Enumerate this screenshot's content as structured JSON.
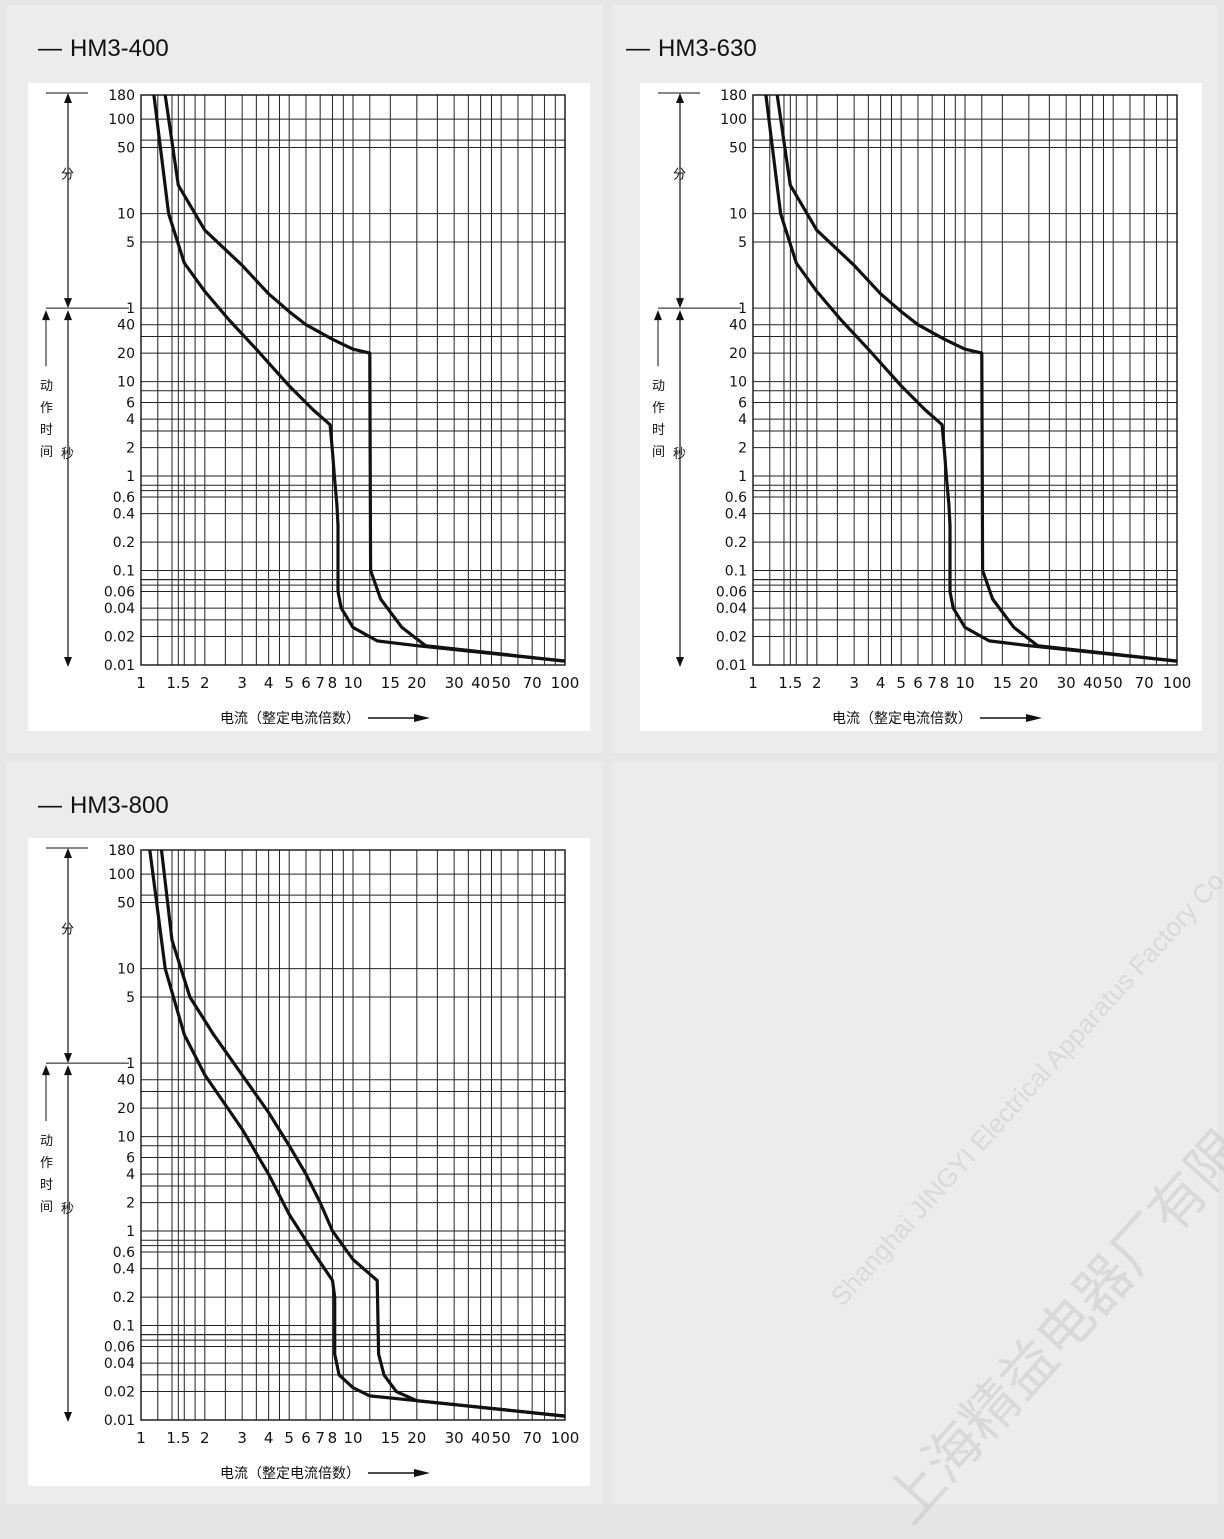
{
  "charts": [
    {
      "id": "hm3-400",
      "title": "HM3-400",
      "dash": "—",
      "x_ticks": [
        "1",
        "1.5",
        "2",
        "3",
        "4",
        "5",
        "6",
        "7",
        "8",
        "10",
        "15",
        "20",
        "30",
        "40",
        "50",
        "70",
        "100"
      ],
      "x_tick_values": [
        1,
        1.5,
        2,
        3,
        4,
        5,
        6,
        7,
        8,
        10,
        15,
        20,
        30,
        40,
        50,
        70,
        100
      ],
      "y_labels": [
        "180",
        "100",
        "50",
        "10",
        "5",
        "1",
        "40",
        "20",
        "10",
        "6",
        "4",
        "2",
        "1",
        "0.6",
        "0.4",
        "0.2",
        "0.1",
        "0.06",
        "0.04",
        "0.02",
        "0.01"
      ],
      "left_annotations": {
        "minutes": "分",
        "action_time": [
          "动",
          "作",
          "时",
          "间"
        ],
        "seconds": "秒"
      },
      "xlabel": "电流（整定电流倍数）",
      "chart_data": {
        "type": "line",
        "xlabel": "电流（整定电流倍数）",
        "x_scale": "log",
        "xlim": [
          1,
          100
        ],
        "y_scale": "log",
        "y_units": "time (seconds; upper region in minutes)",
        "ylim_seconds": [
          0.01,
          10800
        ],
        "series": [
          {
            "values": [
              [
                1.15,
                10800
              ],
              [
                1.35,
                600
              ],
              [
                1.6,
                180
              ],
              [
                2,
                90
              ],
              [
                2.6,
                45
              ],
              [
                3.5,
                22
              ],
              [
                5,
                9
              ],
              [
                6.5,
                5
              ],
              [
                7.8,
                3.5
              ],
              [
                8,
                1.8
              ],
              [
                8.2,
                0.9
              ],
              [
                8.4,
                0.5
              ],
              [
                8.5,
                0.3
              ],
              [
                8.5,
                0.06
              ],
              [
                8.8,
                0.04
              ],
              [
                10,
                0.025
              ],
              [
                13,
                0.018
              ],
              [
                20,
                0.016
              ],
              [
                100,
                0.011
              ]
            ]
          },
          {
            "values": [
              [
                1.3,
                10800
              ],
              [
                1.5,
                1200
              ],
              [
                2,
                400
              ],
              [
                3,
                170
              ],
              [
                4,
                85
              ],
              [
                5,
                55
              ],
              [
                6,
                40
              ],
              [
                8,
                28
              ],
              [
                10,
                22
              ],
              [
                12,
                20
              ],
              [
                12.1,
                0.1
              ],
              [
                13.5,
                0.05
              ],
              [
                17,
                0.025
              ],
              [
                22,
                0.016
              ],
              [
                100,
                0.011
              ]
            ]
          }
        ]
      }
    },
    {
      "id": "hm3-630",
      "title": "HM3-630",
      "dash": "—",
      "x_ticks": [
        "1",
        "1.5",
        "2",
        "3",
        "4",
        "5",
        "6",
        "7",
        "8",
        "10",
        "15",
        "20",
        "30",
        "40",
        "50",
        "70",
        "100"
      ],
      "x_tick_values": [
        1,
        1.5,
        2,
        3,
        4,
        5,
        6,
        7,
        8,
        10,
        15,
        20,
        30,
        40,
        50,
        70,
        100
      ],
      "y_labels": [
        "180",
        "100",
        "50",
        "10",
        "5",
        "1",
        "40",
        "20",
        "10",
        "6",
        "4",
        "2",
        "1",
        "0.6",
        "0.4",
        "0.2",
        "0.1",
        "0.06",
        "0.04",
        "0.02",
        "0.01"
      ],
      "left_annotations": {
        "minutes": "分",
        "action_time": [
          "动",
          "作",
          "时",
          "间"
        ],
        "seconds": "秒"
      },
      "xlabel": "电流（整定电流倍数）",
      "chart_data": {
        "type": "line",
        "xlabel": "电流（整定电流倍数）",
        "x_scale": "log",
        "xlim": [
          1,
          100
        ],
        "y_scale": "log",
        "y_units": "time (seconds; upper region in minutes)",
        "ylim_seconds": [
          0.01,
          10800
        ],
        "series": [
          {
            "values": [
              [
                1.15,
                10800
              ],
              [
                1.35,
                600
              ],
              [
                1.6,
                180
              ],
              [
                2,
                90
              ],
              [
                2.6,
                45
              ],
              [
                3.5,
                22
              ],
              [
                5,
                9
              ],
              [
                6.5,
                5
              ],
              [
                7.8,
                3.5
              ],
              [
                8,
                1.8
              ],
              [
                8.2,
                0.9
              ],
              [
                8.4,
                0.5
              ],
              [
                8.5,
                0.3
              ],
              [
                8.5,
                0.06
              ],
              [
                8.8,
                0.04
              ],
              [
                10,
                0.025
              ],
              [
                13,
                0.018
              ],
              [
                20,
                0.016
              ],
              [
                100,
                0.011
              ]
            ]
          },
          {
            "values": [
              [
                1.3,
                10800
              ],
              [
                1.5,
                1200
              ],
              [
                2,
                400
              ],
              [
                3,
                170
              ],
              [
                4,
                85
              ],
              [
                5,
                55
              ],
              [
                6,
                40
              ],
              [
                8,
                28
              ],
              [
                10,
                22
              ],
              [
                12,
                20
              ],
              [
                12.1,
                0.1
              ],
              [
                13.5,
                0.05
              ],
              [
                17,
                0.025
              ],
              [
                22,
                0.016
              ],
              [
                100,
                0.011
              ]
            ]
          }
        ]
      }
    },
    {
      "id": "hm3-800",
      "title": "HM3-800",
      "dash": "—",
      "x_ticks": [
        "1",
        "1.5",
        "2",
        "3",
        "4",
        "5",
        "6",
        "7",
        "8",
        "10",
        "15",
        "20",
        "30",
        "40",
        "50",
        "70",
        "100"
      ],
      "x_tick_values": [
        1,
        1.5,
        2,
        3,
        4,
        5,
        6,
        7,
        8,
        10,
        15,
        20,
        30,
        40,
        50,
        70,
        100
      ],
      "y_labels": [
        "180",
        "100",
        "50",
        "10",
        "5",
        "1",
        "40",
        "20",
        "10",
        "6",
        "4",
        "2",
        "1",
        "0.6",
        "0.4",
        "0.2",
        "0.1",
        "0.06",
        "0.04",
        "0.02",
        "0.01"
      ],
      "left_annotations": {
        "minutes": "分",
        "action_time": [
          "动",
          "作",
          "时",
          "间"
        ],
        "seconds": "秒"
      },
      "xlabel": "电流（整定电流倍数）",
      "chart_data": {
        "type": "line",
        "xlabel": "电流（整定电流倍数）",
        "x_scale": "log",
        "xlim": [
          1,
          100
        ],
        "y_scale": "log",
        "y_units": "time (seconds; upper region in minutes)",
        "ylim_seconds": [
          0.01,
          10800
        ],
        "series": [
          {
            "values": [
              [
                1.1,
                10800
              ],
              [
                1.3,
                600
              ],
              [
                1.6,
                120
              ],
              [
                2,
                45
              ],
              [
                3,
                12
              ],
              [
                4,
                4
              ],
              [
                5,
                1.5
              ],
              [
                6.5,
                0.6
              ],
              [
                8,
                0.3
              ],
              [
                8.2,
                0.2
              ],
              [
                8.2,
                0.05
              ],
              [
                8.6,
                0.03
              ],
              [
                10,
                0.022
              ],
              [
                12,
                0.018
              ],
              [
                20,
                0.016
              ],
              [
                100,
                0.011
              ]
            ]
          },
          {
            "values": [
              [
                1.25,
                10800
              ],
              [
                1.4,
                1200
              ],
              [
                1.7,
                300
              ],
              [
                2.2,
                120
              ],
              [
                3,
                45
              ],
              [
                4,
                18
              ],
              [
                5,
                8
              ],
              [
                6,
                4
              ],
              [
                7,
                2
              ],
              [
                8,
                1
              ],
              [
                10,
                0.5
              ],
              [
                12,
                0.35
              ],
              [
                13,
                0.3
              ],
              [
                13.2,
                0.05
              ],
              [
                14,
                0.03
              ],
              [
                16,
                0.02
              ],
              [
                20,
                0.016
              ],
              [
                100,
                0.011
              ]
            ]
          }
        ]
      }
    }
  ],
  "watermark": {
    "company_text": "Shanghai JINGYI Electrical Apparatus Factory Co.,Ltd.",
    "company_cn": "上海精益电器厂有限公司"
  }
}
